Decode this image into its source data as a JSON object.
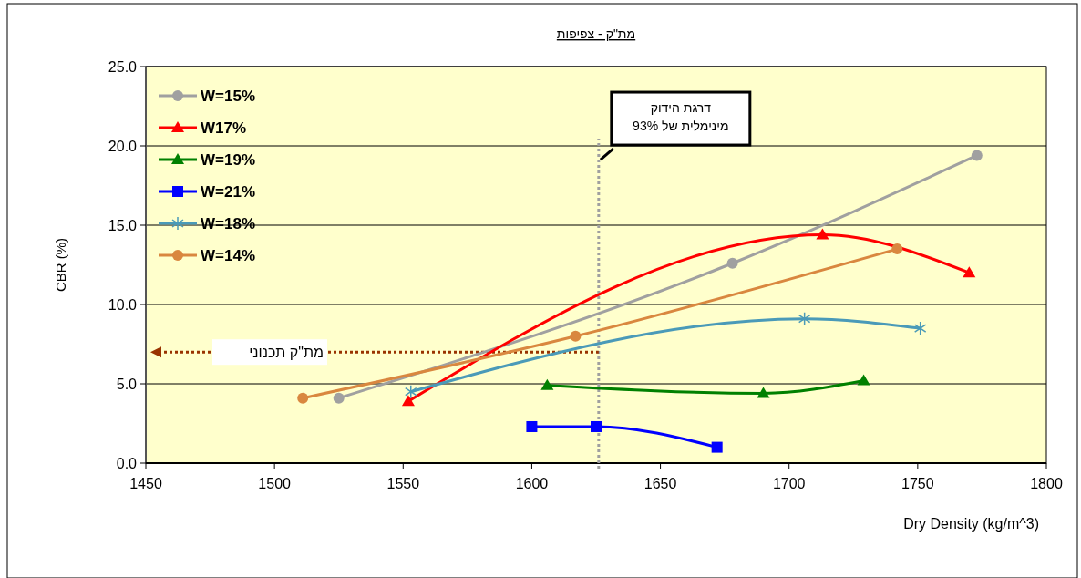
{
  "chart_data": {
    "type": "line",
    "title": "מת\"ק - צפיפות",
    "xlabel": "Dry Density  (kg/m^3)",
    "ylabel": "CBR (%)",
    "xlim": [
      1450,
      1800
    ],
    "xticks": [
      1450,
      1500,
      1550,
      1600,
      1650,
      1700,
      1750,
      1800
    ],
    "ylim": [
      0,
      25
    ],
    "yticks": [
      {
        "value": 0,
        "label": "0.0"
      },
      {
        "value": 5,
        "label": "5.0"
      },
      {
        "value": 10,
        "label": "10.0"
      },
      {
        "value": 15,
        "label": "15.0"
      },
      {
        "value": 20,
        "label": "20.0"
      },
      {
        "value": 25,
        "label": "25.0"
      }
    ],
    "grid": "y",
    "legend": "top left",
    "series": [
      {
        "name": "W=15%",
        "color": "#a0a0a0",
        "marker": "circle",
        "x": [
          1525,
          1678,
          1773
        ],
        "values": [
          4.1,
          12.6,
          19.4
        ]
      },
      {
        "name": "W17%",
        "color": "#ff0000",
        "marker": "triangle",
        "x": [
          1552,
          1713,
          1770
        ],
        "values": [
          3.9,
          14.4,
          12.0
        ]
      },
      {
        "name": "W=19%",
        "color": "#008000",
        "marker": "triangle",
        "x": [
          1606,
          1690,
          1729
        ],
        "values": [
          4.9,
          4.4,
          5.2
        ]
      },
      {
        "name": "W=21%",
        "color": "#0000ff",
        "marker": "square",
        "x": [
          1600,
          1625,
          1672
        ],
        "values": [
          2.3,
          2.3,
          1.0
        ]
      },
      {
        "name": "W=18%",
        "color": "#4a9ab8",
        "marker": "cross",
        "x": [
          1553,
          1706,
          1751
        ],
        "values": [
          4.5,
          9.1,
          8.5
        ]
      },
      {
        "name": "W=14%",
        "color": "#d9873f",
        "marker": "circle",
        "x": [
          1511,
          1617,
          1742
        ],
        "values": [
          4.1,
          8.0,
          13.5
        ]
      }
    ],
    "ref_lines": [
      {
        "axis": "x",
        "value": 1626,
        "label": "דרגת הידוק\nמינימלית  של 93%",
        "color": "#a0a0a0",
        "line_style": "dotted"
      },
      {
        "axis": "y",
        "value": 7,
        "label": "מת\"ק תכנוני",
        "color": "#993300",
        "line_style": "dotted"
      }
    ]
  }
}
